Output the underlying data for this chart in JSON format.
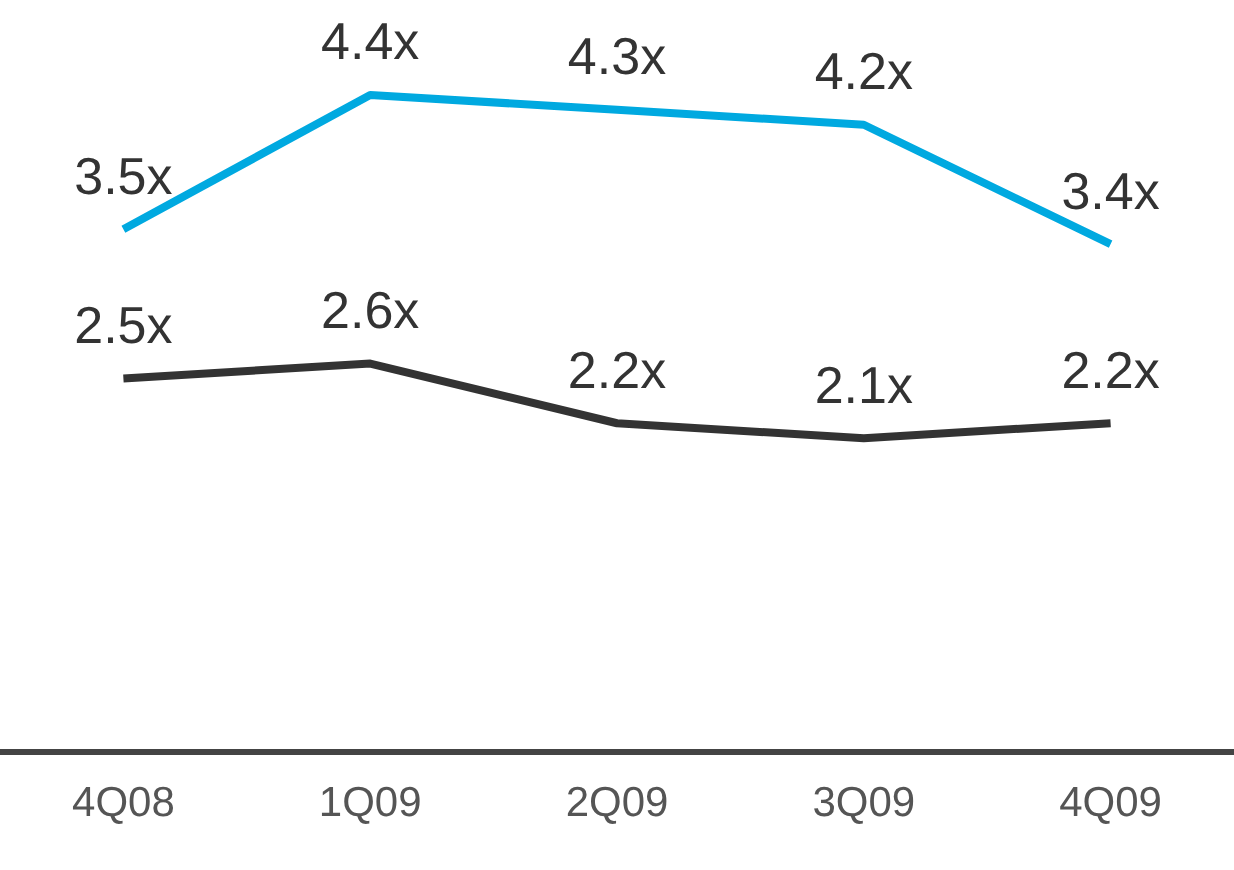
{
  "chart_data": {
    "type": "line",
    "categories": [
      "4Q08",
      "1Q09",
      "2Q09",
      "3Q09",
      "4Q09"
    ],
    "series": [
      {
        "color": "#00a9e0",
        "values": [
          3.5,
          4.4,
          4.3,
          4.2,
          3.4
        ],
        "value_labels": [
          "3.5x",
          "4.4x",
          "4.3x",
          "4.2x",
          "3.4x"
        ]
      },
      {
        "color": "#333333",
        "values": [
          2.5,
          2.6,
          2.2,
          2.1,
          2.2
        ],
        "value_labels": [
          "2.5x",
          "2.6x",
          "2.2x",
          "2.1x",
          "2.2x"
        ]
      }
    ],
    "tick_labels": "x",
    "grid": false,
    "legend": false,
    "marker": "none",
    "line_style": "solid"
  }
}
